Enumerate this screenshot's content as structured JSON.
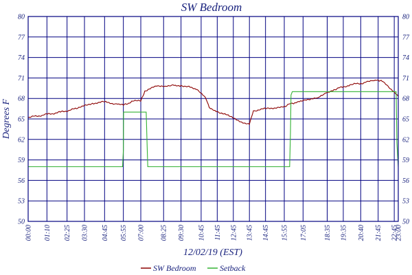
{
  "chart_data": {
    "type": "line",
    "title": "SW Bedroom",
    "xlabel": "12/02/19 (EST)",
    "ylabel": "Degrees F",
    "ylim": [
      50,
      80
    ],
    "y_ticks": [
      "80",
      "77",
      "74",
      "71",
      "68",
      "65",
      "62",
      "59",
      "56",
      "53",
      "50"
    ],
    "xlim": [
      "00:00",
      "23:00"
    ],
    "x_tick_labels": [
      "00:00",
      "01:10",
      "02:25",
      "03:30",
      "04:45",
      "05:55",
      "07:00",
      "08:25",
      "09:30",
      "10:45",
      "11:45",
      "12:45",
      "13:45",
      "14:45",
      "15:55",
      "17:05",
      "18:35",
      "19:35",
      "20:40",
      "21:45",
      "22:45",
      "23:00"
    ],
    "grid": true,
    "legend": "bottom",
    "series": [
      {
        "name": "SW Bedroom",
        "color": "#8b0000",
        "x": [
          "00:00",
          "01:00",
          "02:00",
          "03:00",
          "03:30",
          "04:00",
          "04:45",
          "05:30",
          "05:55",
          "06:30",
          "07:00",
          "07:15",
          "08:00",
          "08:30",
          "09:00",
          "09:30",
          "10:00",
          "10:30",
          "11:00",
          "11:15",
          "11:45",
          "12:30",
          "13:00",
          "13:45",
          "13:52",
          "14:00",
          "14:45",
          "15:30",
          "16:00",
          "16:20",
          "16:30",
          "17:00",
          "17:30",
          "18:00",
          "18:30",
          "19:00",
          "19:35",
          "20:00",
          "20:40",
          "21:00",
          "21:30",
          "21:45",
          "22:00",
          "22:30",
          "23:00"
        ],
        "y": [
          65.2,
          65.6,
          66.0,
          66.5,
          67.0,
          67.3,
          67.5,
          67.2,
          67.0,
          67.6,
          67.6,
          69.1,
          69.8,
          69.8,
          70.0,
          69.9,
          69.8,
          69.3,
          68.2,
          66.7,
          66.1,
          65.4,
          64.8,
          64.2,
          65.2,
          66.2,
          66.5,
          66.7,
          66.8,
          67.3,
          67.2,
          67.6,
          67.8,
          68.1,
          68.8,
          69.3,
          69.7,
          70.0,
          70.2,
          70.4,
          70.6,
          70.7,
          70.5,
          69.4,
          68.3
        ]
      },
      {
        "name": "Setback",
        "color": "#33b233",
        "x": [
          "00:00",
          "05:52",
          "05:55",
          "05:56",
          "07:20",
          "07:23",
          "07:26",
          "16:15",
          "16:18",
          "16:20",
          "16:25",
          "22:52",
          "22:55",
          "23:00"
        ],
        "y": [
          58.0,
          58.0,
          60.5,
          66.0,
          66.0,
          62.0,
          58.0,
          58.0,
          63.0,
          68.5,
          69.0,
          69.0,
          61.5,
          58.0
        ]
      }
    ]
  }
}
